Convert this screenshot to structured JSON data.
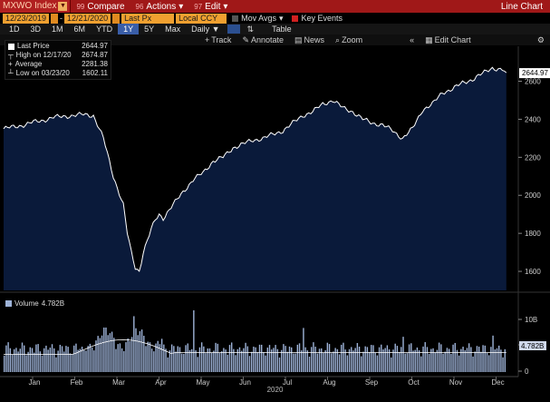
{
  "toolbar": {
    "ticker": "MXWO Index",
    "compare": {
      "num": "99",
      "label": "Compare"
    },
    "actions": {
      "num": "96",
      "label": "Actions"
    },
    "edit": {
      "num": "97",
      "label": "Edit"
    },
    "right_title": "Line Chart"
  },
  "settings": {
    "start_date": "12/23/2019",
    "end_date": "12/21/2020",
    "price_field": "Last Px",
    "currency": "Local CCY",
    "mov_avgs": "Mov Avgs",
    "key_events": "Key Events"
  },
  "periods": [
    "1D",
    "3D",
    "1M",
    "6M",
    "YTD",
    "1Y",
    "5Y",
    "Max"
  ],
  "selected_period": "1Y",
  "frequency": "Daily",
  "table_label": "Table",
  "tools": [
    "Track",
    "Annotate",
    "News",
    "Zoom"
  ],
  "edit_chart": "Edit Chart",
  "legend": {
    "last_price_label": "Last Price",
    "last_price_value": "2644.97",
    "high_label": "High on 12/17/20",
    "high_value": "2674.87",
    "avg_label": "Average",
    "avg_value": "2281.38",
    "low_label": "Low on 03/23/20",
    "low_value": "1602.11"
  },
  "volume": {
    "label": "Volume",
    "value": "4.782B"
  },
  "chart_data": {
    "type": "line",
    "x": [
      0,
      5,
      10,
      15,
      20,
      25,
      30,
      35,
      40,
      45,
      50,
      55,
      60,
      62,
      64,
      66,
      68,
      70,
      72,
      74,
      76,
      78,
      80,
      85,
      90,
      95,
      100,
      105,
      110,
      115,
      120,
      125,
      130,
      135,
      140,
      145,
      150,
      155,
      160,
      165,
      170,
      175,
      180,
      185,
      190,
      195,
      200,
      205,
      210,
      215,
      220,
      225,
      230,
      235,
      240,
      245,
      250,
      252
    ],
    "y": [
      2350,
      2360,
      2370,
      2385,
      2395,
      2410,
      2415,
      2420,
      2425,
      2420,
      2300,
      2100,
      1950,
      1800,
      1700,
      1620,
      1602,
      1700,
      1760,
      1820,
      1870,
      1900,
      1880,
      1950,
      2020,
      2080,
      2120,
      2180,
      2200,
      2250,
      2270,
      2290,
      2300,
      2320,
      2340,
      2380,
      2420,
      2440,
      2480,
      2500,
      2460,
      2440,
      2400,
      2380,
      2370,
      2340,
      2300,
      2350,
      2450,
      2480,
      2540,
      2560,
      2590,
      2610,
      2640,
      2670,
      2660,
      2645
    ],
    "ylim": [
      1500,
      2760
    ],
    "y_ticks": [
      1600,
      1800,
      2000,
      2200,
      2400,
      2600
    ],
    "last_value_label": "2644.97",
    "months": [
      "Jan",
      "Feb",
      "Mar",
      "Apr",
      "May",
      "Jun",
      "Jul",
      "Aug",
      "Sep",
      "Oct",
      "Nov",
      "Dec"
    ],
    "year_label": "2020",
    "volume_ticks": [
      "10B",
      "5B",
      "0"
    ],
    "volume_value_label": "4.782B"
  },
  "colors": {
    "area": "#0a1a3a",
    "line": "#ffffff",
    "volume_bar": "#9eb3d8",
    "toolbar_red": "#a01818",
    "field_orange": "#f0a030"
  }
}
